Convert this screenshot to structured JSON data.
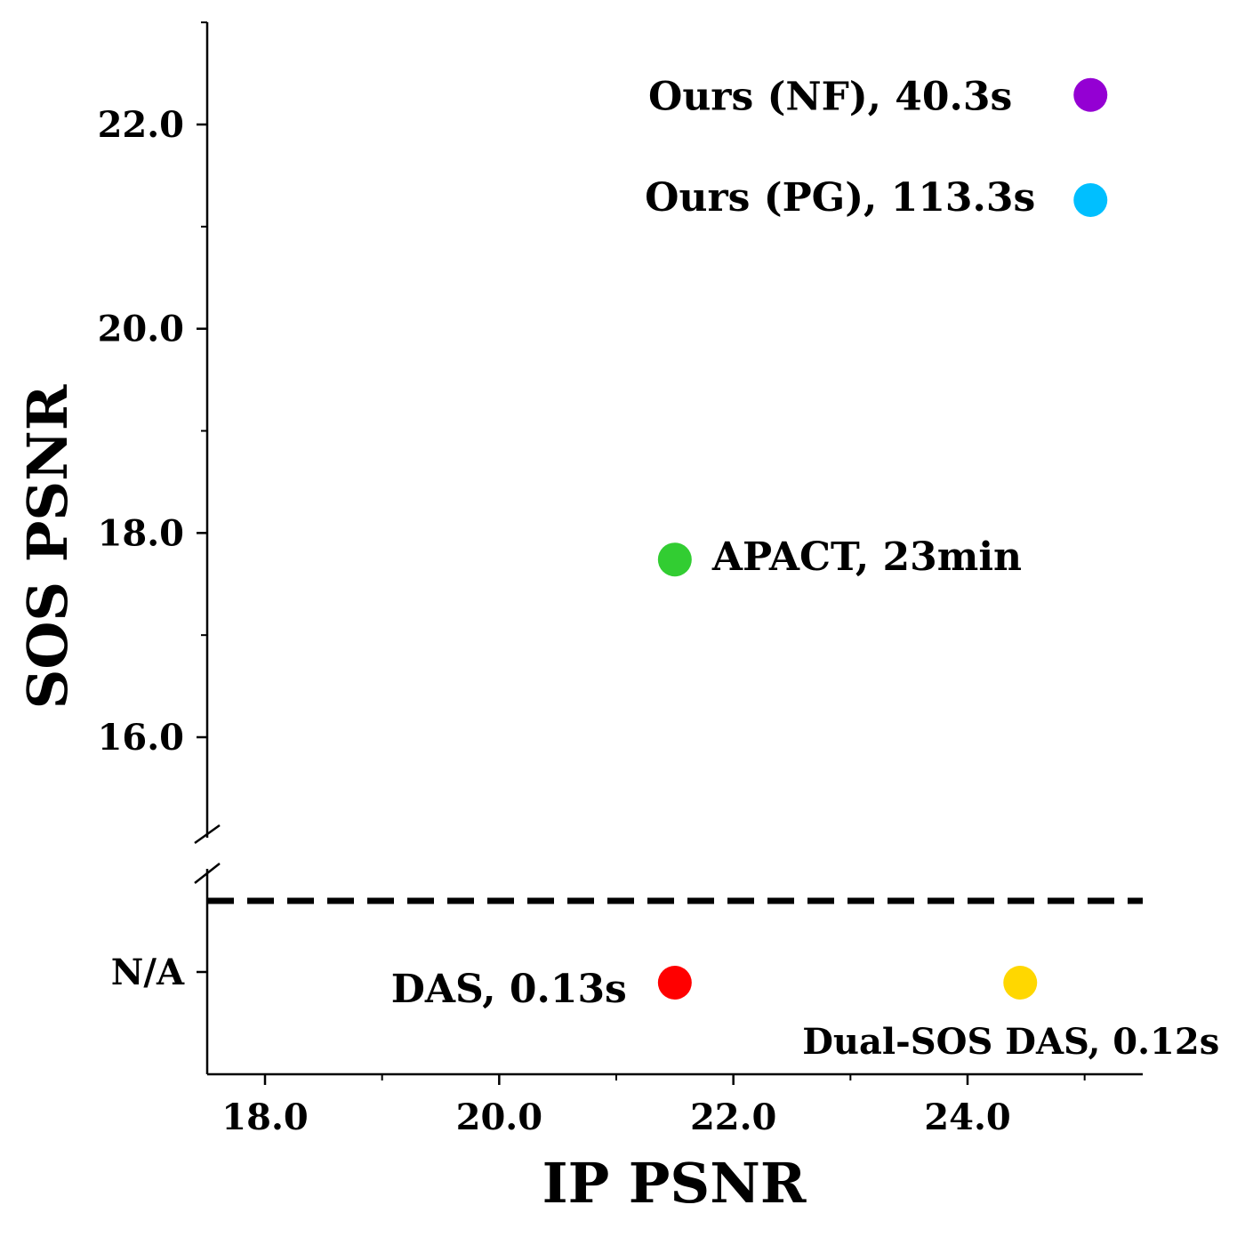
{
  "chart_data": {
    "type": "scatter",
    "xlabel": "IP PSNR",
    "ylabel": "SOS PSNR",
    "xlim": [
      17.5,
      25.5
    ],
    "ylim_upper": [
      15.0,
      23.0
    ],
    "x_ticks": [
      "18.0",
      "20.0",
      "22.0",
      "24.0"
    ],
    "x_tick_values": [
      18.0,
      20.0,
      22.0,
      24.0
    ],
    "y_ticks": [
      "16.0",
      "18.0",
      "20.0",
      "22.0"
    ],
    "y_tick_values": [
      16.0,
      18.0,
      20.0,
      22.0
    ],
    "na_label": "N/A",
    "broken_y_axis": true,
    "grid": false,
    "points": [
      {
        "label": "Ours (NF), 40.3s",
        "x": 25.05,
        "y": 22.29,
        "color": "#9400d3"
      },
      {
        "label": "Ours (PG), 113.3s",
        "x": 25.05,
        "y": 21.26,
        "color": "#00bfff"
      },
      {
        "label": "APACT, 23min",
        "x": 21.5,
        "y": 17.74,
        "color": "#32cd32"
      },
      {
        "label": "DAS, 0.13s",
        "x": 21.5,
        "y": "N/A",
        "color": "#ff0000"
      },
      {
        "label": "Dual-SOS DAS, 0.12s",
        "x": 24.45,
        "y": "N/A",
        "color": "#ffd700"
      }
    ]
  }
}
